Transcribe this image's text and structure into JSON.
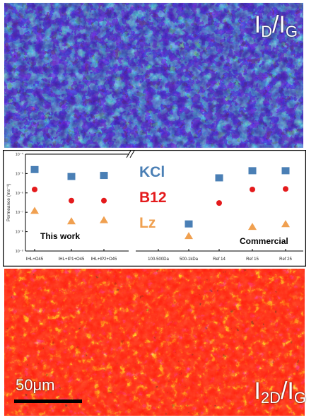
{
  "labels": {
    "top_map": {
      "main": "I",
      "sub1": "D",
      "slash": "/I",
      "sub2": "G"
    },
    "bottom_map": {
      "main": "I",
      "sub1": "2D",
      "slash": "/I",
      "sub2": "G"
    },
    "scale_bar": "50μm"
  },
  "colors": {
    "kcl": "#4a7fb5",
    "b12": "#e41a1c",
    "lz": "#f0a050",
    "top_map_bg": "#3a1ea0",
    "bottom_map_bg": "#ff1a0a"
  },
  "chart_data": {
    "type": "scatter",
    "ylabel": "Permeance (ms⁻¹)",
    "yscale": "log",
    "ylim": [
      1e-09,
      0.0001
    ],
    "yticks": [
      "10⁻⁹",
      "10⁻⁸",
      "10⁻⁷",
      "10⁻⁶",
      "10⁻⁵",
      "10⁻⁴"
    ],
    "categories": [
      "IHL+O45",
      "IHL+IP1+O45",
      "IHL+IP2+O45",
      "100-500Da",
      "500-1kDa",
      "Ref 14",
      "Ref 15",
      "Ref 25"
    ],
    "series": [
      {
        "name": "KCl",
        "marker": "square",
        "values": [
          1.6e-05,
          7e-06,
          8e-06,
          null,
          2.5e-08,
          6e-06,
          1.4e-05,
          1.4e-05
        ]
      },
      {
        "name": "B12",
        "marker": "circle",
        "values": [
          1.5e-06,
          4e-07,
          4e-07,
          null,
          null,
          3e-07,
          1.5e-06,
          1.6e-06
        ]
      },
      {
        "name": "Lz",
        "marker": "triangle",
        "values": [
          1.2e-07,
          3.5e-08,
          4e-08,
          null,
          6e-09,
          null,
          1.8e-08,
          2.5e-08
        ]
      }
    ],
    "annotations": {
      "this_work": "This work",
      "commercial": "Commercial"
    },
    "axis_break": true
  }
}
